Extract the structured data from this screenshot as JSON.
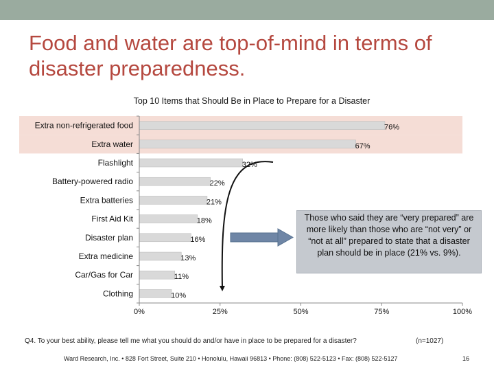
{
  "slide": {
    "title": "Food and water are top-of-mind in terms of disaster preparedness.",
    "page_number": "16"
  },
  "chart_data": {
    "type": "bar",
    "orientation": "horizontal",
    "title": "Top 10 Items that Should Be in Place to Prepare for a Disaster",
    "categories": [
      "Extra non-refrigerated food",
      "Extra water",
      "Flashlight",
      "Battery-powered radio",
      "Extra batteries",
      "First Aid Kit",
      "Disaster plan",
      "Extra medicine",
      "Car/Gas for Car",
      "Clothing"
    ],
    "values": [
      76,
      67,
      32,
      22,
      21,
      18,
      16,
      13,
      11,
      10
    ],
    "value_labels": [
      "76%",
      "67%",
      "32%",
      "22%",
      "21%",
      "18%",
      "16%",
      "13%",
      "11%",
      "10%"
    ],
    "xlim": [
      0,
      100
    ],
    "ticks": [
      0,
      25,
      50,
      75,
      100
    ],
    "tick_labels": [
      "0%",
      "25%",
      "50%",
      "75%",
      "100%"
    ],
    "highlighted_categories": [
      "Extra non-refrigerated food",
      "Extra water"
    ],
    "bar_color": "#d9d9d9",
    "highlight_color": "#f5ddd6"
  },
  "callout": {
    "text": "Those who said they are “very prepared” are more likely than those who are “not very” or “not at all” prepared to state that a disaster plan should be in place (21% vs. 9%)."
  },
  "footnote": {
    "question": "Q4. To your best ability, please tell me what you should do and/or have in place to be prepared for a disaster?",
    "sample": "(n=1027)"
  },
  "footer": {
    "text": "Ward Research, Inc. • 828 Fort Street, Suite 210 • Honolulu, Hawaii 96813 • Phone: (808) 522-5123 • Fax: (808) 522-5127"
  },
  "colors": {
    "title": "#b5483f",
    "topbar": "#9aab9f",
    "arrow": "#6f86a6"
  }
}
